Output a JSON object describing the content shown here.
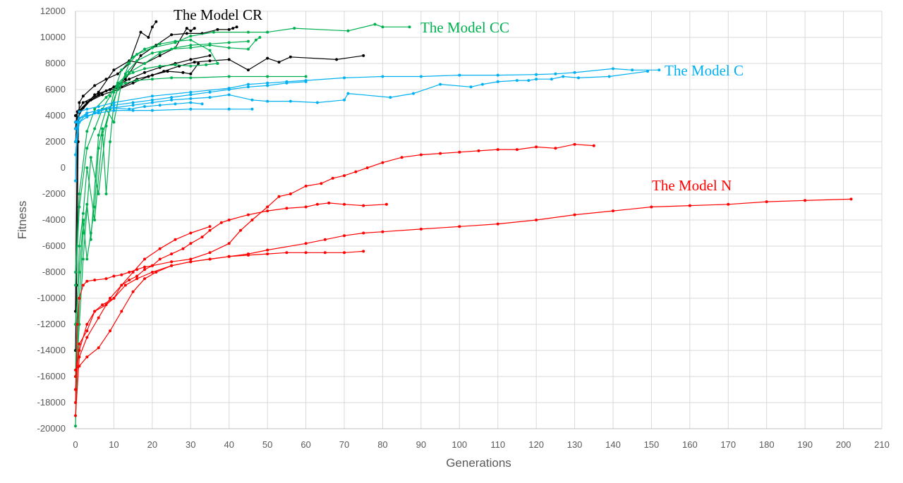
{
  "chart_data": {
    "type": "line",
    "xlabel": "Generations",
    "ylabel": "Fitness",
    "xlim": [
      0,
      210
    ],
    "ylim": [
      -20000,
      12000
    ],
    "x_ticks": [
      0,
      10,
      20,
      30,
      40,
      50,
      60,
      70,
      80,
      90,
      100,
      110,
      120,
      130,
      140,
      150,
      160,
      170,
      180,
      190,
      200,
      210
    ],
    "y_ticks": [
      -20000,
      -18000,
      -16000,
      -14000,
      -12000,
      -10000,
      -8000,
      -6000,
      -4000,
      -2000,
      0,
      2000,
      4000,
      6000,
      8000,
      10000,
      12000
    ],
    "grid": true,
    "legend": "none (series labeled inline)",
    "groups": [
      {
        "name": "The Model CR",
        "label_text": "The Model CR",
        "color": "#000000",
        "runs": [
          {
            "x": [
              0,
              0.3,
              0.7,
              1,
              2,
              5,
              8,
              11,
              14,
              17,
              19,
              20,
              21
            ],
            "y": [
              -14000,
              -9000,
              2000,
              5000,
              5500,
              6300,
              6800,
              7200,
              8000,
              10400,
              10000,
              10800,
              11200
            ]
          },
          {
            "x": [
              0,
              0.5,
              1,
              3,
              6,
              10,
              14,
              18,
              22,
              26,
              29,
              30,
              31
            ],
            "y": [
              -11000,
              3000,
              4300,
              5000,
              5800,
              7500,
              8200,
              8000,
              8600,
              9200,
              10700,
              10500,
              10700
            ]
          },
          {
            "x": [
              0,
              0.5,
              2,
              5,
              9,
              13,
              17,
              21,
              25,
              29,
              33,
              37,
              40,
              41,
              42
            ],
            "y": [
              2000,
              3800,
              4600,
              5600,
              6000,
              6800,
              8600,
              9400,
              10200,
              10300,
              10300,
              10600,
              10600,
              10700,
              10800
            ]
          },
          {
            "x": [
              0,
              0.5,
              2,
              6,
              10,
              14,
              18,
              22,
              26,
              30,
              35
            ],
            "y": [
              3000,
              4300,
              5000,
              5600,
              6200,
              6800,
              7300,
              7700,
              8000,
              8300,
              8600
            ]
          },
          {
            "x": [
              0,
              1,
              3,
              7,
              11,
              15,
              19,
              23,
              27,
              31,
              35,
              40,
              45,
              50,
              53,
              56,
              68,
              75
            ],
            "y": [
              4000,
              4400,
              5000,
              5600,
              6000,
              6500,
              7000,
              7400,
              7800,
              8100,
              8200,
              8300,
              7500,
              8400,
              8100,
              8500,
              8300,
              8600
            ]
          },
          {
            "x": [
              0,
              1,
              4,
              8,
              12,
              16,
              20,
              24,
              28,
              30,
              32
            ],
            "y": [
              3500,
              4200,
              5200,
              5900,
              6200,
              6800,
              7100,
              7400,
              7300,
              7200,
              8000
            ]
          }
        ]
      },
      {
        "name": "The Model CC",
        "label_text": "The Model CC",
        "color": "#00b050",
        "runs": [
          {
            "x": [
              0,
              1,
              2,
              3,
              4,
              6,
              8,
              10,
              12,
              14,
              16,
              20,
              26,
              30,
              36,
              45,
              50,
              57,
              71,
              78,
              80,
              87
            ],
            "y": [
              -19800,
              -10000,
              -5000,
              -2800,
              -5500,
              2500,
              4500,
              3500,
              6500,
              8000,
              8700,
              9200,
              9600,
              10100,
              10400,
              10400,
              10400,
              10700,
              10500,
              11000,
              10800,
              10800
            ]
          },
          {
            "x": [
              0,
              1,
              2,
              3,
              4,
              5,
              6,
              7,
              8,
              9,
              10,
              11,
              13,
              16,
              20,
              25,
              30,
              40,
              50,
              60
            ],
            "y": [
              -12000,
              -8000,
              -4000,
              -7000,
              -5000,
              -3000,
              1500,
              3000,
              -2000,
              2000,
              5000,
              6200,
              6500,
              6700,
              6800,
              6900,
              6900,
              7000,
              7000,
              7000
            ]
          },
          {
            "x": [
              0,
              1,
              2,
              3,
              5,
              7,
              9,
              11,
              13,
              16,
              20,
              25,
              30,
              35,
              40,
              45,
              47,
              48
            ],
            "y": [
              -16000,
              -6000,
              -3500,
              0,
              -4000,
              2500,
              4500,
              6000,
              7200,
              8200,
              8800,
              9100,
              9200,
              9400,
              9200,
              9100,
              9800,
              10000
            ]
          },
          {
            "x": [
              0,
              1,
              3,
              5,
              7,
              9,
              11,
              13,
              15,
              18,
              22,
              26,
              30,
              34,
              37
            ],
            "y": [
              -9000,
              -3000,
              1500,
              3000,
              4500,
              5500,
              6500,
              7000,
              7300,
              7600,
              7800,
              7900,
              7800,
              7900,
              8000
            ]
          },
          {
            "x": [
              0,
              1,
              2,
              4,
              6,
              8,
              10,
              12,
              15,
              18,
              22,
              26,
              30,
              35,
              37
            ],
            "y": [
              -17000,
              -12000,
              -7000,
              800,
              -2000,
              3200,
              5800,
              7500,
              8500,
              9100,
              9500,
              9700,
              9800,
              9000,
              8000
            ]
          },
          {
            "x": [
              0,
              1,
              3,
              5,
              8,
              11,
              14,
              18,
              22,
              26,
              30,
              35,
              40,
              45
            ],
            "y": [
              -8000,
              -2000,
              2800,
              4500,
              5400,
              6300,
              7300,
              8000,
              8800,
              9200,
              9400,
              9500,
              9600,
              9700
            ]
          }
        ]
      },
      {
        "name": "The Model C",
        "label_text": "The Model C",
        "color": "#00b0f0",
        "runs": [
          {
            "x": [
              0,
              0.5,
              1,
              3,
              6,
              10,
              20,
              30,
              40,
              45,
              50,
              55,
              60,
              70,
              80,
              90,
              100,
              110,
              120,
              125,
              130,
              140,
              145,
              152
            ],
            "y": [
              -1000,
              3500,
              4300,
              4500,
              4700,
              5000,
              5500,
              5800,
              6100,
              6400,
              6500,
              6600,
              6700,
              6900,
              7000,
              7000,
              7100,
              7100,
              7150,
              7200,
              7300,
              7600,
              7500,
              7500
            ]
          },
          {
            "x": [
              0,
              1,
              3,
              6,
              10,
              15,
              20,
              25,
              30,
              35,
              40,
              46,
              50,
              56,
              63,
              70,
              71,
              82,
              88,
              95,
              103,
              106,
              110,
              115,
              118,
              120,
              124,
              127,
              131,
              139,
              149
            ],
            "y": [
              1000,
              3500,
              4200,
              4400,
              4600,
              4800,
              5000,
              5200,
              5300,
              5400,
              5600,
              5200,
              5100,
              5100,
              5000,
              5200,
              5700,
              5400,
              5700,
              6400,
              6200,
              6400,
              6600,
              6700,
              6700,
              6800,
              6800,
              7000,
              6900,
              7000,
              7400
            ]
          },
          {
            "x": [
              0,
              1,
              3,
              6,
              10,
              15,
              20,
              25,
              30,
              35,
              40,
              45,
              50,
              55,
              60
            ],
            "y": [
              2000,
              3800,
              4200,
              4400,
              4800,
              5000,
              5200,
              5400,
              5600,
              5800,
              6000,
              6200,
              6300,
              6500,
              6600
            ]
          },
          {
            "x": [
              0,
              1,
              3,
              5,
              9,
              14,
              18,
              22,
              26,
              30,
              33
            ],
            "y": [
              3000,
              3500,
              3900,
              4200,
              4600,
              4500,
              4700,
              4800,
              4900,
              5000,
              4900
            ]
          },
          {
            "x": [
              0,
              1,
              3,
              6,
              10,
              15,
              20,
              30,
              40,
              46
            ],
            "y": [
              3500,
              3800,
              4000,
              4200,
              4400,
              4400,
              4400,
              4500,
              4500,
              4500
            ]
          }
        ]
      },
      {
        "name": "The Model N",
        "label_text": "The Model N",
        "color": "#ff0000",
        "runs": [
          {
            "x": [
              0,
              0.5,
              1,
              2,
              3,
              5,
              8,
              10,
              12,
              14,
              16,
              18,
              20,
              25,
              30,
              35,
              40,
              43,
              46,
              50,
              53,
              56,
              60,
              64,
              67,
              70,
              73,
              76,
              80,
              85,
              90,
              95,
              100,
              105,
              110,
              115,
              120,
              125,
              130,
              135
            ],
            "y": [
              -18000,
              -12000,
              -10000,
              -9000,
              -8700,
              -8600,
              -8500,
              -8300,
              -8200,
              -8000,
              -7800,
              -7600,
              -7500,
              -7200,
              -7000,
              -6500,
              -5800,
              -4800,
              -4000,
              -3000,
              -2200,
              -2000,
              -1400,
              -1200,
              -800,
              -600,
              -300,
              0,
              400,
              800,
              1000,
              1100,
              1200,
              1300,
              1400,
              1400,
              1600,
              1500,
              1800,
              1700
            ]
          },
          {
            "x": [
              0,
              1,
              3,
              5,
              8,
              10,
              12,
              14,
              16,
              18,
              20,
              22,
              25,
              28,
              30,
              33,
              35,
              38,
              40,
              45,
              50,
              55,
              60,
              63,
              66,
              70,
              75,
              81
            ],
            "y": [
              -17000,
              -13500,
              -12500,
              -11000,
              -10500,
              -10000,
              -9000,
              -8600,
              -8300,
              -7800,
              -7500,
              -7000,
              -6600,
              -6200,
              -5800,
              -5300,
              -4800,
              -4200,
              -4000,
              -3600,
              -3300,
              -3100,
              -3000,
              -2800,
              -2700,
              -2800,
              -2900,
              -2800
            ]
          },
          {
            "x": [
              0,
              1,
              3,
              5,
              7,
              10,
              13,
              16,
              20,
              25,
              30,
              35,
              40,
              45,
              50,
              60,
              65,
              70,
              75,
              80,
              90,
              100,
              110,
              120,
              130,
              140,
              150,
              160,
              170,
              180,
              190,
              202
            ],
            "y": [
              -16000,
              -14000,
              -12000,
              -11000,
              -10500,
              -10000,
              -9000,
              -8500,
              -8000,
              -7500,
              -7200,
              -7000,
              -6800,
              -6600,
              -6300,
              -5800,
              -5500,
              -5200,
              -5000,
              -4900,
              -4700,
              -4500,
              -4300,
              -4000,
              -3600,
              -3300,
              -3000,
              -2900,
              -2800,
              -2600,
              -2500,
              -2400
            ]
          },
          {
            "x": [
              0,
              1,
              3,
              6,
              9,
              12,
              15,
              18,
              21,
              25,
              30,
              35,
              40,
              45,
              50,
              55,
              60,
              65,
              70,
              75
            ],
            "y": [
              -15500,
              -15200,
              -14500,
              -13800,
              -12500,
              -11000,
              -9500,
              -8500,
              -8000,
              -7500,
              -7200,
              -7000,
              -6800,
              -6700,
              -6600,
              -6500,
              -6500,
              -6500,
              -6500,
              -6400
            ]
          },
          {
            "x": [
              0,
              1,
              3,
              6,
              9,
              12,
              15,
              18,
              22,
              26,
              30,
              35
            ],
            "y": [
              -19000,
              -14500,
              -13000,
              -11500,
              -10000,
              -9000,
              -8000,
              -7000,
              -6200,
              -5500,
              -5000,
              -4500
            ]
          }
        ]
      }
    ]
  }
}
